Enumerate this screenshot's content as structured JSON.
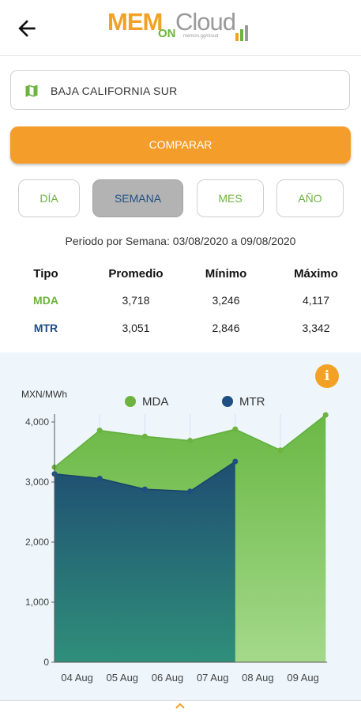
{
  "header": {
    "logo": {
      "mem": "MEM",
      "on": "ON",
      "cloud": "Cloud",
      "sub": "memon.gg/cloud"
    }
  },
  "region_select": {
    "value": "BAJA CALIFORNIA SUR",
    "icon": "map-icon"
  },
  "compare_button": {
    "label": "COMPARAR"
  },
  "periods": [
    {
      "label": "DÍA",
      "active": false
    },
    {
      "label": "SEMANA",
      "active": true
    },
    {
      "label": "MES",
      "active": false
    },
    {
      "label": "AÑO",
      "active": false
    }
  ],
  "period_text": "Periodo por Semana: 03/08/2020 a 09/08/2020",
  "stats": {
    "headers": [
      "Tipo",
      "Promedio",
      "Mínimo",
      "Máximo"
    ],
    "rows": [
      {
        "tipo": "MDA",
        "promedio": "3,718",
        "minimo": "3,246",
        "maximo": "4,117"
      },
      {
        "tipo": "MTR",
        "promedio": "3,051",
        "minimo": "2,846",
        "maximo": "3,342"
      }
    ]
  },
  "colors": {
    "accent": "#f59d2a",
    "mda": "#6cb33f",
    "mtr": "#1f4e82"
  },
  "chart_data": {
    "type": "area",
    "ylabel": "MXN/MWh",
    "categories": [
      "04 Aug",
      "05 Aug",
      "06 Aug",
      "07 Aug",
      "08 Aug",
      "09 Aug"
    ],
    "yticks": [
      "4,000",
      "3,000",
      "2,000",
      "1,000",
      "0"
    ],
    "ylim": [
      0,
      4000
    ],
    "legend_position": "top",
    "series": [
      {
        "name": "MDA",
        "color": "#6cb33f",
        "points": [
          [
            0,
            3246
          ],
          [
            1,
            3860
          ],
          [
            2,
            3760
          ],
          [
            3,
            3690
          ],
          [
            4,
            3880
          ],
          [
            5,
            3530
          ],
          [
            6,
            4117
          ]
        ]
      },
      {
        "name": "MTR",
        "color": "#1f4e82",
        "points": [
          [
            0,
            3135
          ],
          [
            1,
            3060
          ],
          [
            2,
            2880
          ],
          [
            3,
            2846
          ],
          [
            4,
            3342
          ]
        ]
      }
    ]
  }
}
